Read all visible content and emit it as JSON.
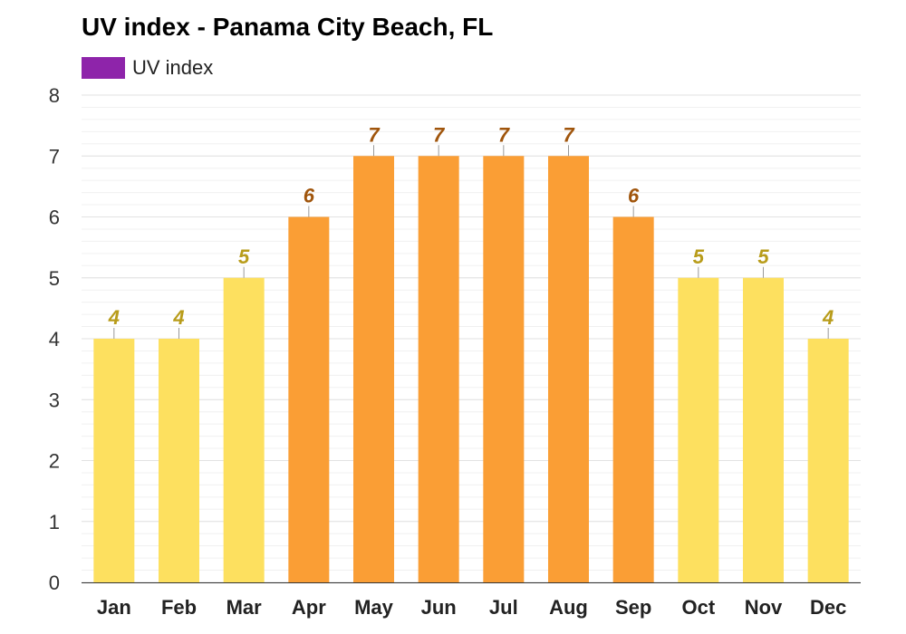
{
  "title": "UV index - Panama City Beach, FL",
  "legend": {
    "label": "UV index",
    "color": "#8e24aa"
  },
  "colors": {
    "low_moderate": "#fde05f",
    "high": "#fa9e35",
    "label_low_moderate": "#b89c1a",
    "label_high": "#a0550c",
    "gridline": "#e2e2e2",
    "axis": "#333333"
  },
  "chart_data": {
    "type": "bar",
    "title": "UV index - Panama City Beach, FL",
    "xlabel": "",
    "ylabel": "",
    "categories": [
      "Jan",
      "Feb",
      "Mar",
      "Apr",
      "May",
      "Jun",
      "Jul",
      "Aug",
      "Sep",
      "Oct",
      "Nov",
      "Dec"
    ],
    "series": [
      {
        "name": "UV index",
        "values": [
          4,
          4,
          5,
          6,
          7,
          7,
          7,
          7,
          6,
          5,
          5,
          4
        ]
      }
    ],
    "ylim": [
      0,
      8
    ],
    "yticks": [
      0,
      1,
      2,
      3,
      4,
      5,
      6,
      7,
      8
    ],
    "grid": true,
    "legend_position": "top-left",
    "data_labels": true
  }
}
